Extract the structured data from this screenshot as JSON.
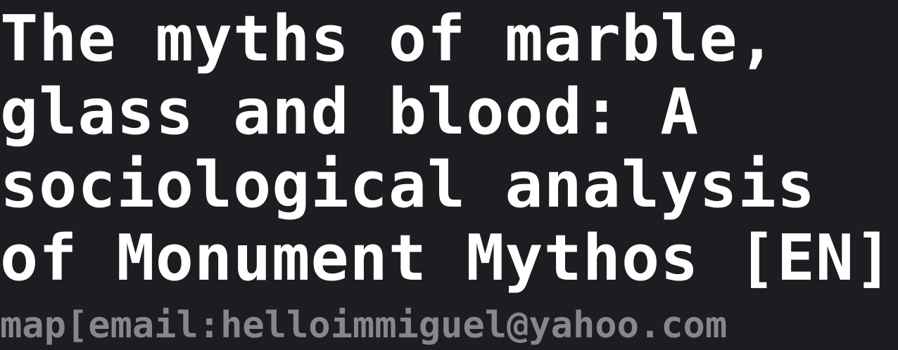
{
  "article": {
    "title": "The myths of marble, glass and blood: A sociological analysis of Monument Mythos [EN]"
  },
  "footer": {
    "contact_line": "map[email:helloimmiguel@yahoo.com"
  },
  "colors": {
    "background": "#1c1c21",
    "title_text": "#ffffff",
    "overlay_text": "#c8c8cd"
  }
}
